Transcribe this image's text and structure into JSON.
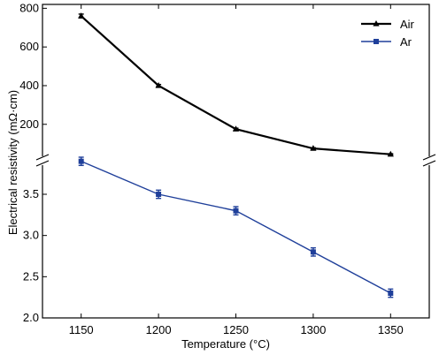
{
  "chart_data": {
    "type": "line",
    "title": "",
    "xlabel": "Temperature (°C)",
    "ylabel": "Electrical resistivity (mΩ·cm)",
    "x": [
      1150,
      1200,
      1250,
      1300,
      1350
    ],
    "x_ticks": [
      "1150",
      "1200",
      "1250",
      "1300",
      "1350"
    ],
    "broken_y_axis": true,
    "y_upper_segment": {
      "range": [
        30,
        820
      ],
      "ticks": [
        "200",
        "400",
        "600",
        "800"
      ]
    },
    "y_lower_segment": {
      "range": [
        2.0,
        3.95
      ],
      "ticks": [
        "2.0",
        "2.5",
        "3.0",
        "3.5"
      ]
    },
    "legend_position": "top-right",
    "grid": false,
    "series": [
      {
        "name": "Air",
        "color": "#000000",
        "marker": "triangle",
        "y_segment": "upper",
        "values": [
          760,
          400,
          175,
          75,
          45
        ],
        "errors": [
          10,
          6,
          5,
          4,
          3
        ]
      },
      {
        "name": "Ar",
        "color": "#1f3f9a",
        "marker": "square",
        "y_segment": "lower",
        "values": [
          3.9,
          3.5,
          3.3,
          2.8,
          2.3
        ],
        "errors": [
          0.05,
          0.05,
          0.05,
          0.05,
          0.05
        ]
      }
    ]
  }
}
